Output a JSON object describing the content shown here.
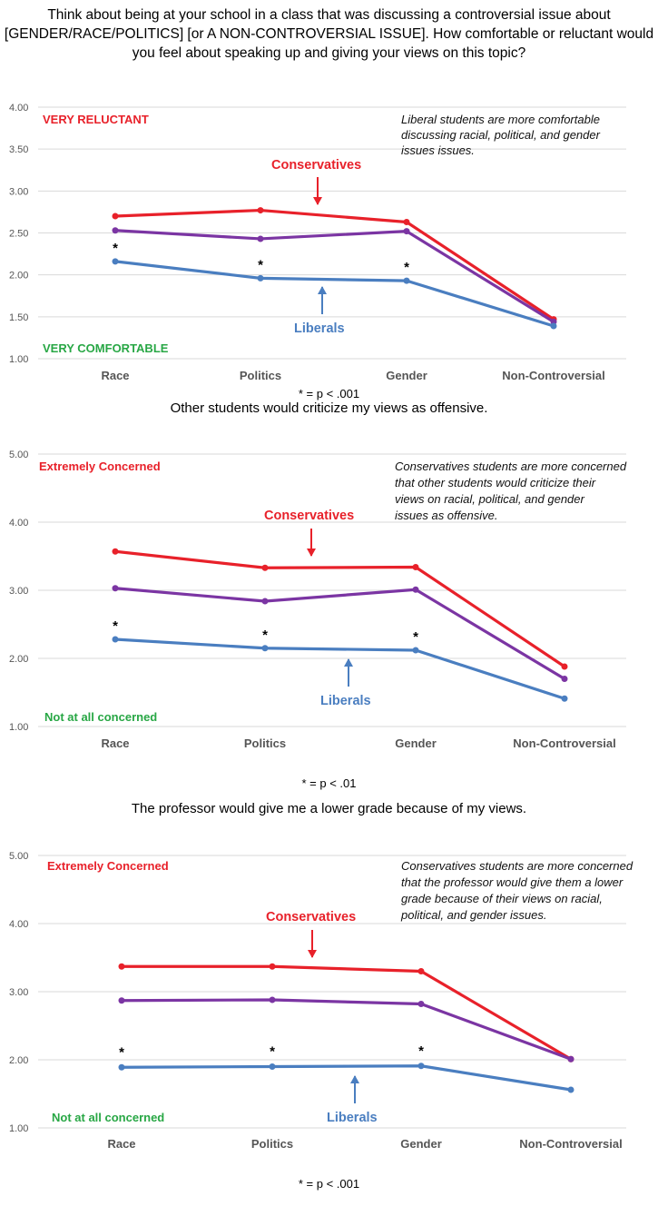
{
  "intro": "Think about being at your school in a class that was discussing a controversial issue about [GENDER/RACE/POLITICS] [or A NON-CONTROVERSIAL ISSUE]. How comfortable or reluctant would you feel about speaking up and giving your views on this topic?",
  "colors": {
    "conservatives": "#e8212a",
    "middle": "#7b35a3",
    "liberals": "#4a7ec0",
    "top_label": "#e8212a",
    "bottom_label": "#28a745"
  },
  "chart_data": [
    {
      "type": "line",
      "categories": [
        "Race",
        "Politics",
        "Gender",
        "Non-Controversial"
      ],
      "ylim": [
        1.0,
        4.0
      ],
      "yticks": [
        "1.00",
        "1.50",
        "2.00",
        "2.50",
        "3.00",
        "3.50",
        "4.00"
      ],
      "series": [
        {
          "name": "Conservatives",
          "color": "#e8212a",
          "values": [
            2.7,
            2.77,
            2.63,
            1.47
          ]
        },
        {
          "name": "",
          "color": "#7b35a3",
          "values": [
            2.53,
            2.43,
            2.52,
            1.44
          ]
        },
        {
          "name": "Liberals",
          "color": "#4a7ec0",
          "values": [
            2.16,
            1.96,
            1.93,
            1.39
          ]
        }
      ],
      "top_label": "VERY RELUCTANT",
      "bottom_label": "VERY COMFORTABLE",
      "annotation": "Liberal students are more comfortable discussing racial, political, and gender issues issues.",
      "significance_markers": [
        "*",
        "*",
        "*"
      ],
      "significance_note": "* = p < .001"
    },
    {
      "type": "line",
      "subtitle": "Other students would criticize my views as offensive.",
      "categories": [
        "Race",
        "Politics",
        "Gender",
        "Non-Controversial"
      ],
      "ylim": [
        1.0,
        5.0
      ],
      "yticks": [
        "1.00",
        "2.00",
        "3.00",
        "4.00",
        "5.00"
      ],
      "series": [
        {
          "name": "Conservatives",
          "color": "#e8212a",
          "values": [
            3.57,
            3.33,
            3.34,
            1.88
          ]
        },
        {
          "name": "",
          "color": "#7b35a3",
          "values": [
            3.03,
            2.84,
            3.01,
            1.7
          ]
        },
        {
          "name": "Liberals",
          "color": "#4a7ec0",
          "values": [
            2.28,
            2.15,
            2.12,
            1.41
          ]
        }
      ],
      "top_label": "Extremely Concerned",
      "bottom_label": "Not at all concerned",
      "annotation": "Conservatives students are more concerned that other students would criticize their views on racial, political, and gender issues as offensive.",
      "significance_markers": [
        "*",
        "*",
        "*"
      ],
      "significance_note": "* = p < .01"
    },
    {
      "type": "line",
      "subtitle": "The professor would give me a lower grade because of my views.",
      "categories": [
        "Race",
        "Politics",
        "Gender",
        "Non-Controversial"
      ],
      "ylim": [
        1.0,
        5.0
      ],
      "yticks": [
        "1.00",
        "2.00",
        "3.00",
        "4.00",
        "5.00"
      ],
      "series": [
        {
          "name": "Conservatives",
          "color": "#e8212a",
          "values": [
            3.37,
            3.37,
            3.3,
            2.01
          ]
        },
        {
          "name": "",
          "color": "#7b35a3",
          "values": [
            2.87,
            2.88,
            2.82,
            2.01
          ]
        },
        {
          "name": "Liberals",
          "color": "#4a7ec0",
          "values": [
            1.89,
            1.9,
            1.91,
            1.56
          ]
        }
      ],
      "top_label": "Extremely Concerned",
      "bottom_label": "Not at all concerned",
      "annotation": "Conservatives students are more concerned that the professor would give them a lower grade because of their views on racial, political, and gender issues.",
      "significance_markers": [
        "*",
        "*",
        "*"
      ],
      "significance_note": "* = p < .001"
    }
  ]
}
